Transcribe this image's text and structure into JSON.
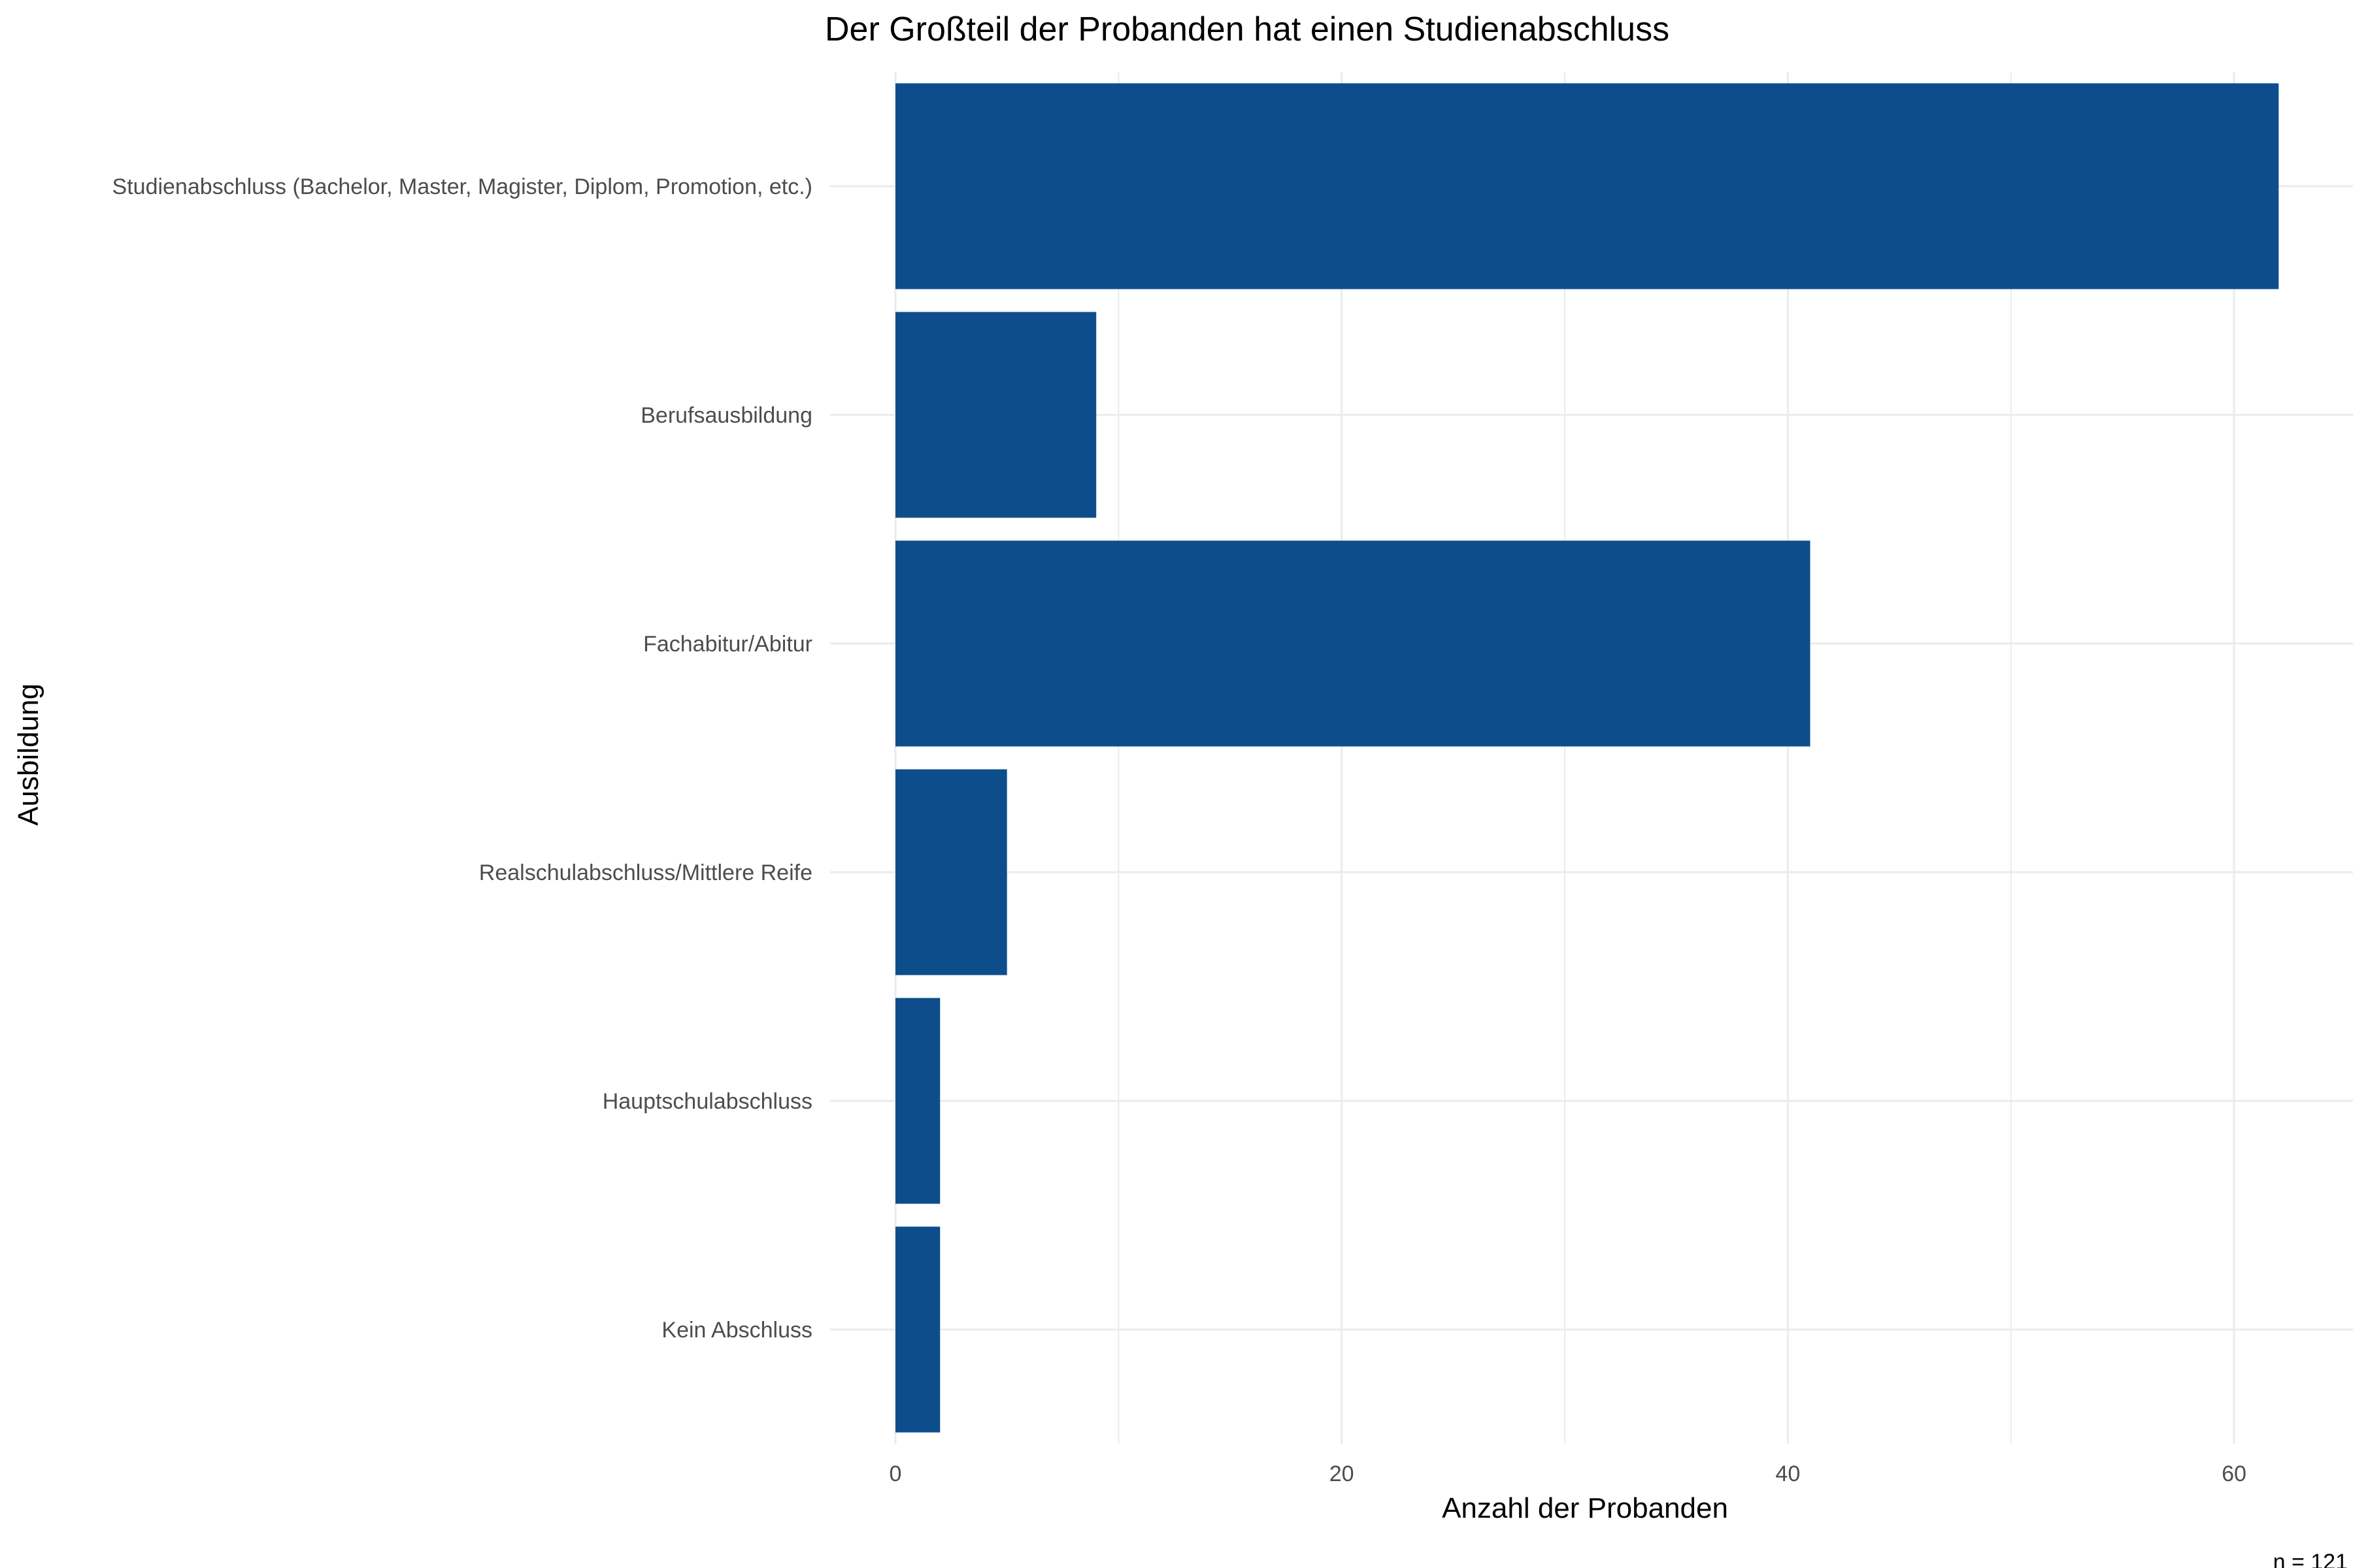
{
  "chart_data": {
    "type": "bar",
    "orientation": "horizontal",
    "title": "Der Großteil der Probanden hat einen Studienabschluss",
    "xlabel": "Anzahl der Probanden",
    "ylabel": "Ausbildung",
    "caption": "n = 121",
    "categories": [
      "Studienabschluss (Bachelor, Master, Magister, Diplom, Promotion, etc.)",
      "Berufsausbildung",
      "Fachabitur/Abitur",
      "Realschulabschluss/Mittlere Reife",
      "Hauptschulabschluss",
      "Kein Abschluss"
    ],
    "values": [
      62,
      9,
      41,
      5,
      2,
      2
    ],
    "xlim": [
      0,
      65
    ],
    "xticks": [
      0,
      20,
      40,
      60
    ],
    "xtick_labels": [
      "0",
      "20",
      "40",
      "60"
    ],
    "grid": true,
    "legend": "none",
    "bar_color": "#0e4d8b",
    "grid_color": "#ebebeb"
  }
}
